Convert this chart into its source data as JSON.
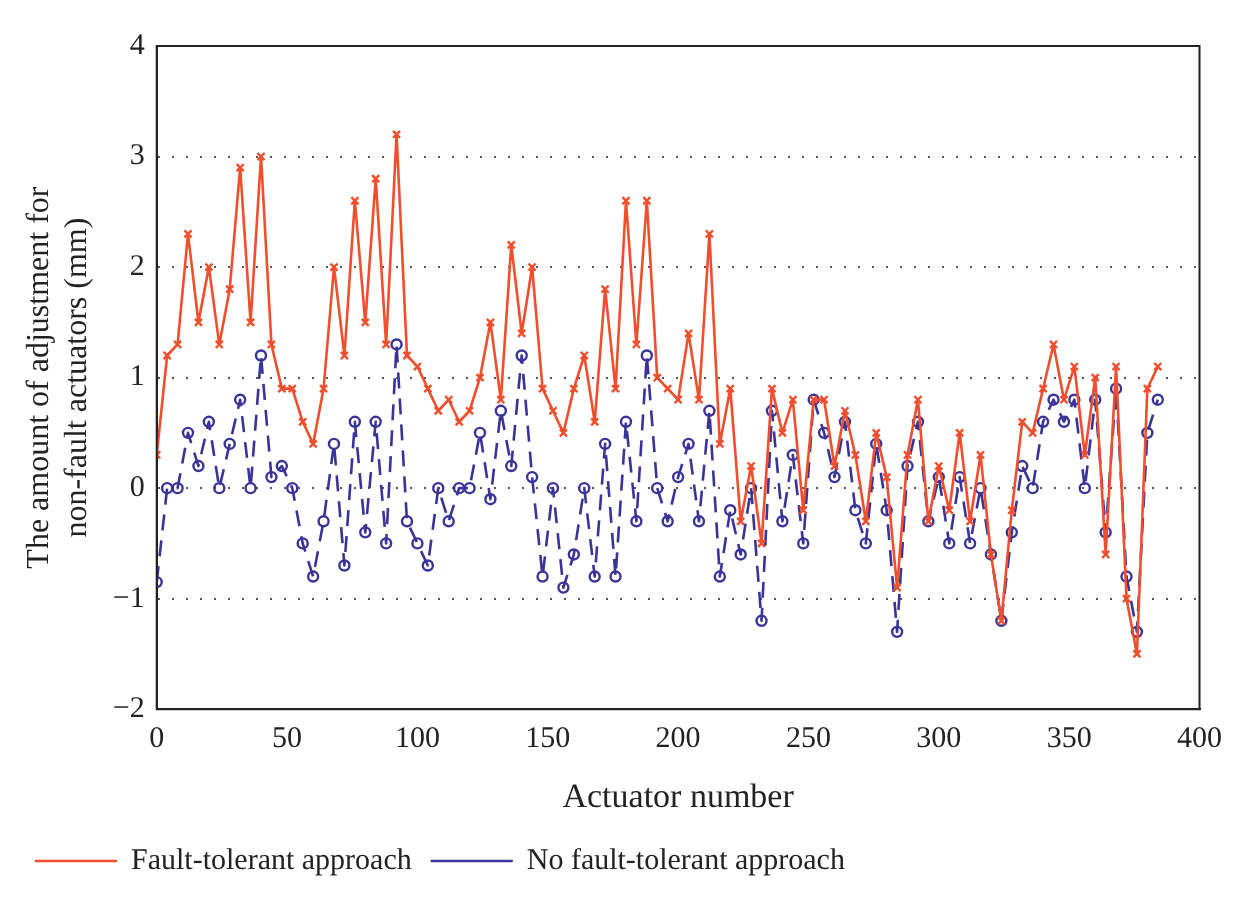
{
  "chart_data": {
    "type": "line",
    "xlabel": "Actuator number",
    "ylabel": "The amount of adjustment for\nnon-fault actuators (mm)",
    "x": [
      0,
      4,
      8,
      12,
      16,
      20,
      24,
      28,
      32,
      36,
      40,
      44,
      48,
      52,
      56,
      60,
      64,
      68,
      72,
      76,
      80,
      84,
      88,
      92,
      96,
      100,
      104,
      108,
      112,
      116,
      120,
      124,
      128,
      132,
      136,
      140,
      144,
      148,
      152,
      156,
      160,
      164,
      168,
      172,
      176,
      180,
      184,
      188,
      192,
      196,
      200,
      204,
      208,
      212,
      216,
      220,
      224,
      228,
      232,
      236,
      240,
      244,
      248,
      252,
      256,
      260,
      264,
      268,
      272,
      276,
      280,
      284,
      288,
      292,
      296,
      300,
      304,
      308,
      312,
      316,
      320,
      324,
      328,
      332,
      336,
      340,
      344,
      348,
      352,
      356,
      360,
      364,
      368,
      372,
      376,
      380,
      384
    ],
    "series": [
      {
        "name": "Fault-tolerant approach",
        "color": "#f04e2c",
        "marker": "cross",
        "line_style": "solid",
        "values": [
          0.3,
          1.2,
          1.3,
          2.3,
          1.5,
          2.0,
          1.3,
          1.8,
          2.9,
          1.5,
          3.0,
          1.3,
          0.9,
          0.9,
          0.6,
          0.4,
          0.9,
          2.0,
          1.2,
          2.6,
          1.5,
          2.8,
          1.3,
          3.2,
          1.2,
          1.1,
          0.9,
          0.7,
          0.8,
          0.6,
          0.7,
          1.0,
          1.5,
          0.8,
          2.2,
          1.4,
          2.0,
          0.9,
          0.7,
          0.5,
          0.9,
          1.2,
          0.6,
          1.8,
          0.9,
          2.6,
          1.3,
          2.6,
          1.0,
          0.9,
          0.8,
          1.4,
          0.8,
          2.3,
          0.4,
          0.9,
          -0.3,
          0.2,
          -0.5,
          0.9,
          0.5,
          0.8,
          -0.2,
          0.8,
          0.8,
          0.2,
          0.7,
          0.3,
          -0.3,
          0.5,
          0.1,
          -0.9,
          0.3,
          0.8,
          -0.3,
          0.2,
          -0.2,
          0.5,
          -0.3,
          0.3,
          -0.6,
          -1.2,
          -0.2,
          0.6,
          0.5,
          0.9,
          1.3,
          0.8,
          1.1,
          0.3,
          1.0,
          -0.6,
          1.1,
          -1.0,
          -1.5,
          0.9,
          1.1
        ]
      },
      {
        "name": "No fault-tolerant approach",
        "color": "#3a3399",
        "marker": "circle",
        "line_style": "dashed",
        "values": [
          -0.85,
          0.0,
          0.0,
          0.5,
          0.2,
          0.6,
          0.0,
          0.4,
          0.8,
          0.0,
          1.2,
          0.1,
          0.2,
          0.0,
          -0.5,
          -0.8,
          -0.3,
          0.4,
          -0.7,
          0.6,
          -0.4,
          0.6,
          -0.5,
          1.3,
          -0.3,
          -0.5,
          -0.7,
          0.0,
          -0.3,
          0.0,
          0.0,
          0.5,
          -0.1,
          0.7,
          0.2,
          1.2,
          0.1,
          -0.8,
          0.0,
          -0.9,
          -0.6,
          0.0,
          -0.8,
          0.4,
          -0.8,
          0.6,
          -0.3,
          1.2,
          0.0,
          -0.3,
          0.1,
          0.4,
          -0.3,
          0.7,
          -0.8,
          -0.2,
          -0.6,
          0.0,
          -1.2,
          0.7,
          -0.3,
          0.3,
          -0.5,
          0.8,
          0.5,
          0.1,
          0.6,
          -0.2,
          -0.5,
          0.4,
          -0.2,
          -1.3,
          0.2,
          0.6,
          -0.3,
          0.1,
          -0.5,
          0.1,
          -0.5,
          0.0,
          -0.6,
          -1.2,
          -0.4,
          0.2,
          0.0,
          0.6,
          0.8,
          0.6,
          0.8,
          0.0,
          0.8,
          -0.4,
          0.9,
          -0.8,
          -1.3,
          0.5,
          0.8
        ]
      }
    ],
    "xlim": [
      0,
      400
    ],
    "xticks": [
      0,
      50,
      100,
      150,
      200,
      250,
      300,
      350,
      400
    ],
    "ylim": [
      -2,
      4
    ],
    "yticks": [
      -2,
      -1,
      0,
      1,
      2,
      3,
      4
    ],
    "grid": "y",
    "legend": "bottom"
  }
}
